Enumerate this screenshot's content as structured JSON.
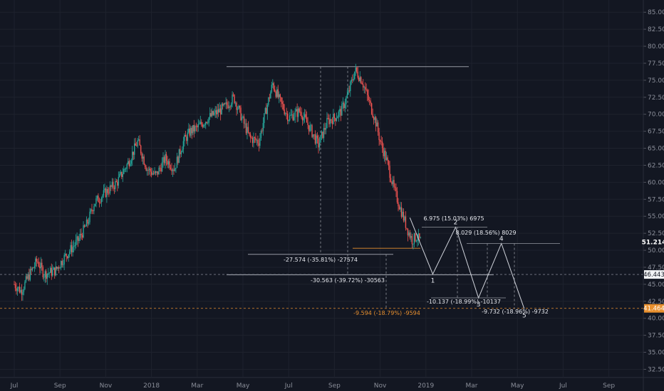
{
  "colors": {
    "background": "#131722",
    "bull": "#26a69a",
    "bear": "#ef5350",
    "grid": "#1e222d",
    "axis_text": "#8a8e99",
    "annotation_line": "#9598a1",
    "wave": "#d1d4dc",
    "orange": "#e8902f",
    "price_badge_bg": "#f1f2f4",
    "orange_badge_bg": "#e8902f"
  },
  "chart_data": {
    "type": "candlestick",
    "ylim": [
      31.4,
      86.8
    ],
    "y_ticks": [
      "85.000",
      "82.500",
      "80.000",
      "77.500",
      "75.000",
      "72.500",
      "70.000",
      "67.500",
      "65.000",
      "62.500",
      "60.000",
      "57.500",
      "55.000",
      "52.500",
      "50.000",
      "47.500",
      "45.000",
      "42.500",
      "40.000",
      "37.500",
      "35.000",
      "32.500"
    ],
    "x_ticks": [
      "Jul",
      "Sep",
      "Nov",
      "2018",
      "Mar",
      "May",
      "Jul",
      "Sep",
      "Nov",
      "2019",
      "Mar",
      "May",
      "Jul",
      "Sep"
    ],
    "x_tick_month_index": [
      0,
      2,
      4,
      6,
      8,
      10,
      12,
      14,
      16,
      18,
      20,
      22,
      24,
      26
    ],
    "price_anchors": [
      [
        0.0,
        45.0
      ],
      [
        0.3,
        44.0
      ],
      [
        0.6,
        46.0
      ],
      [
        1.0,
        48.5
      ],
      [
        1.3,
        46.5
      ],
      [
        1.8,
        47.0
      ],
      [
        2.2,
        49.0
      ],
      [
        2.8,
        51.5
      ],
      [
        3.2,
        54.0
      ],
      [
        3.5,
        57.0
      ],
      [
        4.0,
        58.5
      ],
      [
        4.5,
        60.0
      ],
      [
        5.0,
        63.0
      ],
      [
        5.4,
        66.0
      ],
      [
        5.8,
        62.0
      ],
      [
        6.2,
        61.0
      ],
      [
        6.6,
        63.5
      ],
      [
        7.0,
        62.0
      ],
      [
        7.4,
        66.0
      ],
      [
        7.7,
        67.5
      ],
      [
        8.0,
        68.0
      ],
      [
        8.5,
        69.5
      ],
      [
        9.2,
        71.0
      ],
      [
        9.6,
        72.5
      ],
      [
        10.0,
        69.0
      ],
      [
        10.3,
        66.5
      ],
      [
        10.7,
        66.0
      ],
      [
        11.0,
        70.5
      ],
      [
        11.3,
        74.5
      ],
      [
        11.6,
        72.0
      ],
      [
        12.0,
        69.5
      ],
      [
        12.5,
        70.5
      ],
      [
        13.0,
        67.5
      ],
      [
        13.3,
        65.5
      ],
      [
        13.7,
        69.0
      ],
      [
        14.0,
        69.5
      ],
      [
        14.3,
        70.5
      ],
      [
        14.6,
        73.0
      ],
      [
        14.9,
        76.5
      ],
      [
        15.2,
        75.0
      ],
      [
        15.5,
        72.0
      ],
      [
        15.8,
        69.0
      ],
      [
        16.0,
        66.0
      ],
      [
        16.3,
        63.0
      ],
      [
        16.6,
        59.0
      ],
      [
        16.9,
        56.0
      ],
      [
        17.2,
        53.0
      ],
      [
        17.4,
        51.5
      ],
      [
        17.6,
        52.0
      ],
      [
        17.8,
        51.2
      ]
    ],
    "annotations": {
      "range_top_value": 77.0,
      "range_mid_value": 49.4,
      "range_low_value": 46.4,
      "current_price": "51.214",
      "support_price": "46.443",
      "target_price": "41.464",
      "labels": {
        "drop1": "-27.574 (-35.81%) -27574",
        "drop2": "-30.563 (-39.72%) -30563",
        "drop_orange": "-9.594 (-18.79%) -9594",
        "wave_up1": "6.975 (15.03%) 6975",
        "wave_up2": "8.029 (18.56%) 8029",
        "wave_down2": "-10.137 (-18.99%) -10137",
        "wave_down3": "-9.732 (-18.96%) -9732"
      },
      "wave_points": [
        [
          17.3,
          54.8
        ],
        [
          18.3,
          46.5
        ],
        [
          19.3,
          53.4
        ],
        [
          20.3,
          43.0
        ],
        [
          21.3,
          51.0
        ],
        [
          22.3,
          41.4
        ]
      ],
      "wave_labels": [
        "1",
        "2",
        "3",
        "4",
        "5"
      ]
    }
  }
}
